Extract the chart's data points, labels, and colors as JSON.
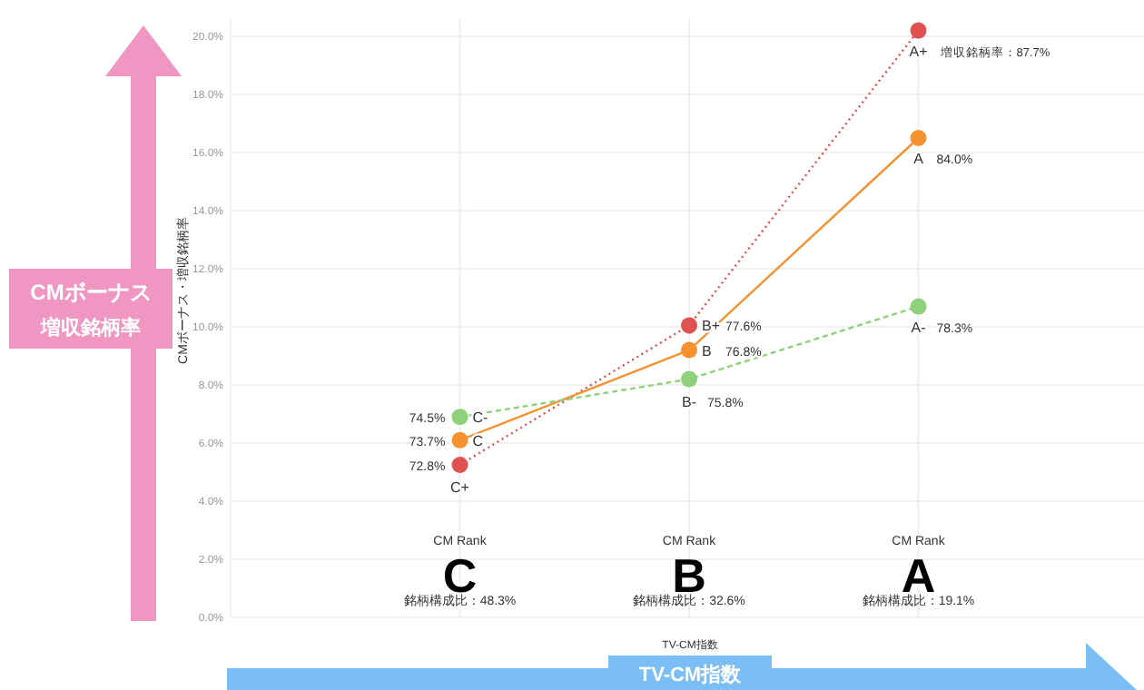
{
  "chart_data": {
    "type": "line",
    "ylabel": "CMボーナス・増収銘柄率",
    "xlabel": "TV-CM指数",
    "categories": [
      "C",
      "B",
      "A"
    ],
    "series": [
      {
        "color": "#e05252",
        "line_style": "dotted",
        "values": [
          5.25,
          10.05,
          20.2
        ]
      },
      {
        "color": "#f5922f",
        "line_style": "solid",
        "values": [
          6.1,
          9.2,
          16.5
        ]
      },
      {
        "color": "#8fd17a",
        "line_style": "dashed",
        "values": [
          6.9,
          8.2,
          10.7
        ]
      }
    ],
    "marker": "circle",
    "ylim": [
      0,
      20.6
    ],
    "yticks": [
      {
        "value": 0,
        "label": "0.0%"
      },
      {
        "value": 2,
        "label": "2.0%"
      },
      {
        "value": 4,
        "label": "4.0%"
      },
      {
        "value": 6,
        "label": "6.0%"
      },
      {
        "value": 8,
        "label": "8.0%"
      },
      {
        "value": 10,
        "label": "10.0%"
      },
      {
        "value": 12,
        "label": "12.0%"
      },
      {
        "value": 14,
        "label": "14.0%"
      },
      {
        "value": 16,
        "label": "16.0%"
      },
      {
        "value": 18,
        "label": "18.0%"
      },
      {
        "value": 20,
        "label": "20.0%"
      }
    ],
    "grid": true,
    "annotations": [
      {
        "text": "C+",
        "x": "C",
        "y": 5.25
      },
      {
        "text": "72.8%",
        "x": "C",
        "y": 5.25
      },
      {
        "text": "C",
        "x": "C",
        "y": 6.1
      },
      {
        "text": "73.7%",
        "x": "C",
        "y": 6.1
      },
      {
        "text": "C-",
        "x": "C",
        "y": 6.9
      },
      {
        "text": "74.5%",
        "x": "C",
        "y": 6.9
      },
      {
        "text": "B+",
        "x": "B",
        "y": 10.05
      },
      {
        "text": "77.6%",
        "x": "B",
        "y": 10.05
      },
      {
        "text": "B",
        "x": "B",
        "y": 9.2
      },
      {
        "text": "76.8%",
        "x": "B",
        "y": 9.2
      },
      {
        "text": "B-",
        "x": "B",
        "y": 8.2
      },
      {
        "text": "75.8%",
        "x": "B",
        "y": 8.2
      },
      {
        "text": "A+",
        "x": "A",
        "y": 20.2
      },
      {
        "text": "増収銘柄率：87.7%",
        "x": "A",
        "y": 20.2
      },
      {
        "text": "A",
        "x": "A",
        "y": 16.5
      },
      {
        "text": "84.0%",
        "x": "A",
        "y": 16.5
      },
      {
        "text": "A-",
        "x": "A",
        "y": 10.7
      },
      {
        "text": "78.3%",
        "x": "A",
        "y": 10.7
      },
      "CM Rank",
      "銘柄構成比：48.3%",
      "CM Rank",
      "銘柄構成比：32.6%",
      "CM Rank",
      "銘柄構成比：19.1%",
      "CMボーナス",
      "増収銘柄率",
      "TV-CM指数"
    ]
  }
}
